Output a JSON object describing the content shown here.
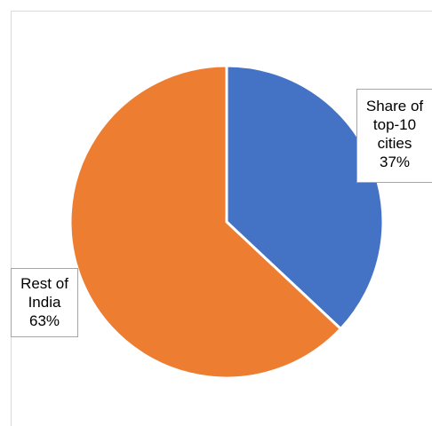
{
  "chart_data": {
    "type": "pie",
    "title": "",
    "start_angle_deg": 0,
    "direction": "clockwise",
    "legend": "none",
    "slices": [
      {
        "name": "Share of top-10 cities",
        "label_lines": [
          "Share of",
          "top-10",
          "cities",
          "37%"
        ],
        "value": 37,
        "color": "#4472C4"
      },
      {
        "name": "Rest of India",
        "label_lines": [
          "Rest of",
          "India",
          "63%"
        ],
        "value": 63,
        "color": "#ED7D31"
      }
    ]
  }
}
